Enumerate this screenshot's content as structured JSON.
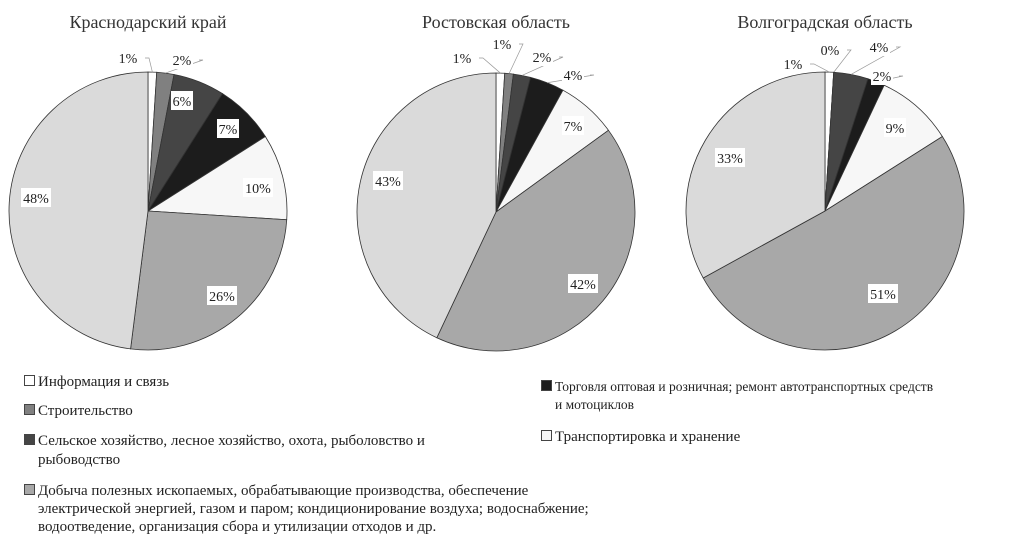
{
  "chart_data": {
    "type": "pie",
    "categories": [
      "Информация и связь",
      "Строительство",
      "Сельское хозяйство, лесное хозяйство, охота, рыболовство и рыбоводство",
      "Торговля оптовая и розничная; ремонт автотранспортных средств и мотоциклов",
      "Транспортировка и хранение",
      "Добыча полезных ископаемых, обрабатывающие производства, обеспечение электрической энергией, газом и паром; кондиционирование воздуха; водоснабжение; водоотведение, организация сбора и утилизации отходов и др.",
      ""
    ],
    "colors": [
      "#ffffff",
      "#808080",
      "#454545",
      "#1c1c1c",
      "#f7f7f7",
      "#a8a8a8",
      "#dadada"
    ],
    "series": [
      {
        "name": "Краснодарский край",
        "values": [
          1,
          2,
          6,
          7,
          10,
          26,
          48
        ]
      },
      {
        "name": "Ростовская область",
        "values": [
          1,
          1,
          2,
          4,
          7,
          42,
          43
        ]
      },
      {
        "name": "Волгоградская область",
        "values": [
          1,
          0,
          4,
          2,
          9,
          51,
          33
        ]
      }
    ],
    "unit": "%",
    "legend_position": "bottom"
  },
  "legend": {
    "items": [
      {
        "label": "Информация и связь"
      },
      {
        "label": "Строительство"
      },
      {
        "label": "Сельское хозяйство, лесное хозяйство, охота, рыболовство и",
        "label2": "рыбоводство"
      },
      {
        "label": "Добыча полезных ископаемых, обрабатывающие производства, обеспечение",
        "label2": "электрической энергией, газом и паром; кондиционирование воздуха; водоснабжение;",
        "label3": "водоотведение, организация сбора и утилизации отходов и др."
      },
      {
        "label": "Торговля оптовая и розничная; ремонт автотранспортных средств",
        "label2": "и мотоциклов"
      },
      {
        "label": "Транспортировка и хранение"
      }
    ]
  }
}
